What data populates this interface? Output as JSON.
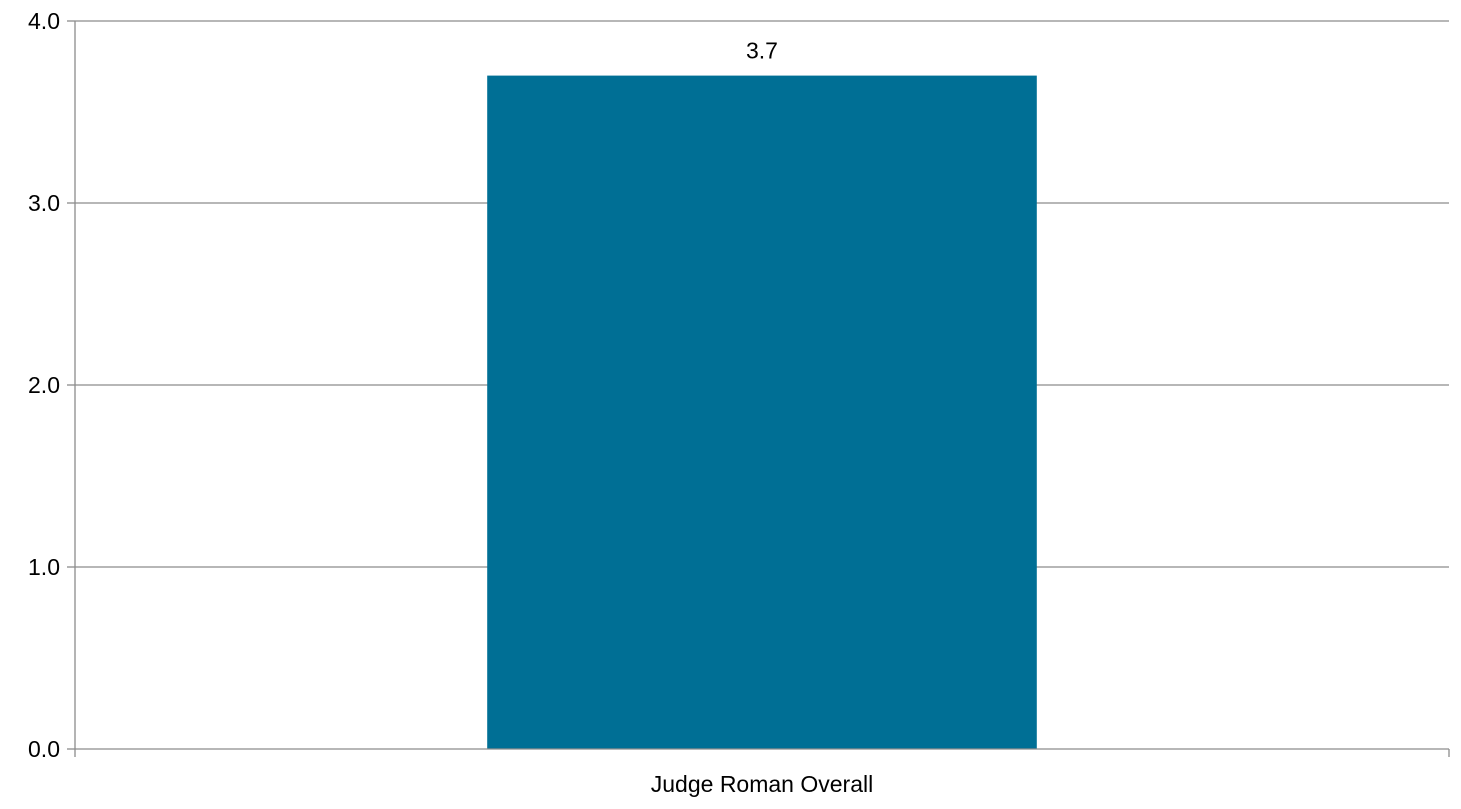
{
  "chart_data": {
    "type": "bar",
    "categories": [
      "Judge Roman Overall"
    ],
    "values": [
      3.7
    ],
    "data_labels": [
      "3.7"
    ],
    "ylim": [
      0,
      4
    ],
    "yticks": [
      0,
      1,
      2,
      3,
      4
    ],
    "ytick_labels": [
      "0.0",
      "1.0",
      "2.0",
      "3.0",
      "4.0"
    ],
    "grid": true,
    "legend": "none",
    "colors": {
      "bar": "#006f95",
      "grid": "#8c8c8c",
      "axis": "#8c8c8c"
    }
  }
}
